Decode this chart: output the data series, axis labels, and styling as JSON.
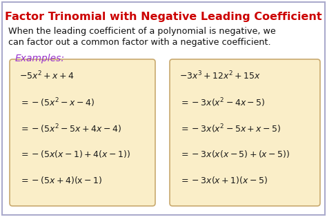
{
  "title": "Factor Trinomial with Negative Leading Coefficient",
  "title_color": "#cc0000",
  "white_bg": "#ffffff",
  "outer_border_color": "#aaaacc",
  "box_bg": "#faeec8",
  "box_edge": "#c8a96e",
  "description_line1": "When the leading coefficient of a polynomial is negative, we",
  "description_line2": "can factor out a common factor with a negative coefficient.",
  "examples_label": "Examples:",
  "examples_color": "#9933cc",
  "left_lines": [
    "$-5x^2+x+4$",
    "$=-(5x^2-x-4)$",
    "$=-(5x^2-5x+4x-4)$",
    "$=-(5x(x-1)+4(x-1))$",
    "$=-(5x+4)(\\mathrm{x}-1)$"
  ],
  "right_lines": [
    "$-3x^3+12x^2+15x$",
    "$=-3x(x^2-4x-5)$",
    "$=-3x(x^2-5x+x-5)$",
    "$=-3x(x(x-5)+(x-5))$",
    "$=-3x(x+1)(x-5)$"
  ],
  "text_color": "#1a1a1a",
  "desc_color": "#111111",
  "figsize": [
    4.74,
    3.15
  ],
  "dpi": 100
}
